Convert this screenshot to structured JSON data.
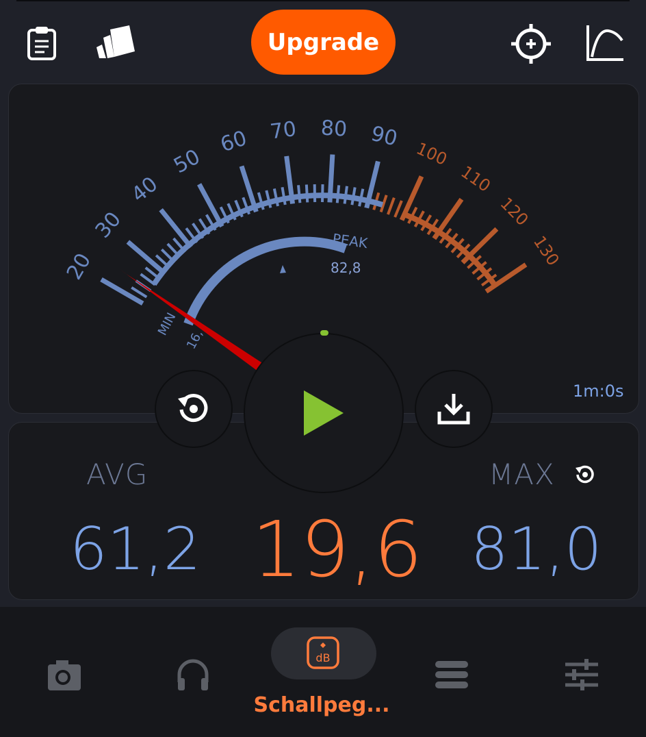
{
  "toolbar": {
    "upgrade_label": "Upgrade",
    "icons": [
      "clipboard-icon",
      "cards-icon",
      "crosshair-icon",
      "graph-curve-icon"
    ]
  },
  "meter": {
    "scale_labels_blue": [
      "20",
      "30",
      "40",
      "50",
      "60",
      "70",
      "80",
      "90"
    ],
    "scale_labels_orange": [
      "100",
      "110",
      "120",
      "130"
    ],
    "peak_label": "PEAK",
    "peak_value": "82,8",
    "min_label": "MIN",
    "min_value": "16,",
    "timer": "1m:0s",
    "needle_value_db": 19.6
  },
  "stats": {
    "avg_label": "AVG",
    "avg_value": "61,2",
    "current_value": "19,6",
    "max_label": "MAX",
    "max_value": "81,0"
  },
  "controls": {
    "icons": [
      "reset-icon",
      "play-icon",
      "download-icon"
    ]
  },
  "nav": {
    "active_label": "Schallpeg...",
    "items": [
      "camera-icon",
      "headphones-icon",
      "decibel-icon",
      "list-icon",
      "sliders-icon"
    ]
  },
  "colors": {
    "accent": "#ff5a00",
    "blue": "#7da3e6",
    "scale_blue": "#6a88c0",
    "scale_orange": "#b85a2c",
    "needle": "#cc0000",
    "play": "#86c232"
  }
}
